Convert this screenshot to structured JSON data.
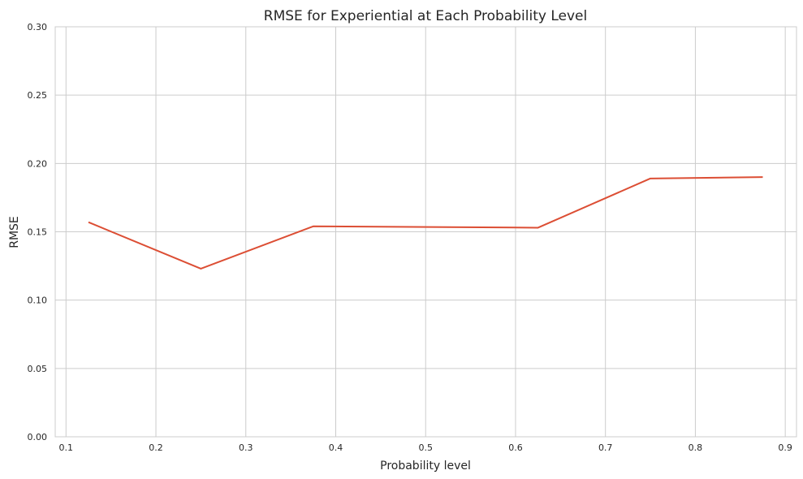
{
  "chart_data": {
    "type": "line",
    "title": "RMSE for Experiential at Each Probability Level",
    "xlabel": "Probability level",
    "ylabel": "RMSE",
    "xlim": [
      0.088,
      0.9125
    ],
    "ylim": [
      0.0,
      0.3
    ],
    "xticks": [
      0.1,
      0.2,
      0.3,
      0.4,
      0.5,
      0.6,
      0.7,
      0.8,
      0.9
    ],
    "xtick_labels": [
      "0.1",
      "0.2",
      "0.3",
      "0.4",
      "0.5",
      "0.6",
      "0.7",
      "0.8",
      "0.9"
    ],
    "yticks": [
      0.0,
      0.05,
      0.1,
      0.15,
      0.2,
      0.25,
      0.3
    ],
    "ytick_labels": [
      "0.00",
      "0.05",
      "0.10",
      "0.15",
      "0.20",
      "0.25",
      "0.30"
    ],
    "grid": true,
    "series": [
      {
        "color": "#dc4e34",
        "x": [
          0.125,
          0.25,
          0.375,
          0.625,
          0.75,
          0.875
        ],
        "y": [
          0.157,
          0.123,
          0.154,
          0.153,
          0.189,
          0.19
        ]
      }
    ]
  }
}
